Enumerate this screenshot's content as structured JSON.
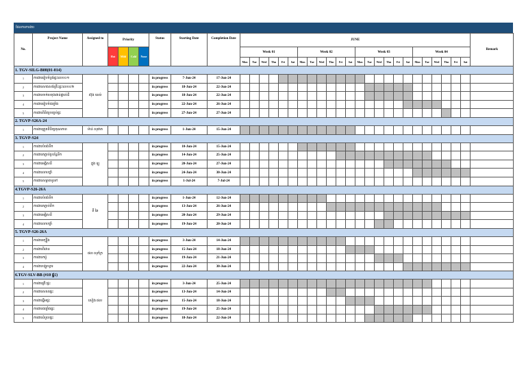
{
  "header": {
    "title": "ផែនការការងារ"
  },
  "table": {
    "columns": {
      "no": "No.",
      "project": "Project Name",
      "assigned": "Assigned to",
      "priority": "Priority",
      "status": "Status",
      "start": "Starting Date",
      "end": "Completion Date",
      "month": "JUNE",
      "remark": "Remark"
    },
    "priority_levels": [
      {
        "label": "Hot",
        "color": "#ff3b3b"
      },
      {
        "label": "Mild",
        "color": "#ffc000"
      },
      {
        "label": "Cold",
        "color": "#92d050"
      },
      {
        "label": "None",
        "color": "#0070c0"
      }
    ],
    "weeks": [
      "Week 01",
      "Week 02",
      "Week 03",
      "Week 04"
    ],
    "days": [
      "Mon",
      "Tue",
      "Wed",
      "Thu",
      "Fri",
      "Sat"
    ],
    "sections": [
      {
        "title": "1. TGV-SILG-B08(01-014)",
        "assigned": "ស៊ុង យល់",
        "rows": [
          {
            "no": 1,
            "name": "ការងាររៀបចំប្លង់ផ្ទះលេខ០១",
            "status": "in progress",
            "start": "7-Jun-24",
            "end": "17-Jun-24"
          },
          {
            "no": 2,
            "name": "ការងារសាងសង់គ្រឹះផ្ទះលេខ០២",
            "status": "in progress",
            "start": "18-Jun-24",
            "end": "22-Jun-24"
          },
          {
            "no": 3,
            "name": "ការងារចាក់បេតុងជាន់ផ្ទាល់ដី",
            "status": "in progress",
            "start": "18-Jun-24",
            "end": "22-Jun-24"
          },
          {
            "no": 4,
            "name": "ការងាររៀបចំជញ្ជាំង",
            "status": "in progress",
            "start": "22-Jun-24",
            "end": "26-Jun-24"
          },
          {
            "no": 5,
            "name": "ការងារពិនិត្យបញ្ចប់ផ្ទះ",
            "status": "in progress",
            "start": "27-Jun-24",
            "end": "27-Jun-24"
          }
        ]
      },
      {
        "title": "2. TGVP-S26A-24",
        "assigned": "ម៉ាន់ សុផាត",
        "rows": [
          {
            "no": 1,
            "name": "ការងារត្រួតពិនិត្យគុណភាព",
            "status": "in progress",
            "start": "1-Jun-24",
            "end": "15-Jun-24"
          }
        ]
      },
      {
        "title": "3. TGVP-S24",
        "assigned": "ក្នុង ឡូ",
        "rows": [
          {
            "no": 1,
            "name": "ការងារបំពង់ទឹក",
            "status": "in progress",
            "start": "10-Jun-24",
            "end": "15-Jun-24"
          },
          {
            "no": 2,
            "name": "ការងារតភ្ជាប់ប្រព័ន្ធទឹក",
            "status": "in progress",
            "start": "14-Jun-24",
            "end": "25-Jun-24"
          },
          {
            "no": 3,
            "name": "ការងារអគ្គិសនី",
            "status": "in progress",
            "start": "20-Jun-24",
            "end": "27-Jun-24"
          },
          {
            "no": 4,
            "name": "ការងារលាបថ្នាំ",
            "status": "in progress",
            "start": "24-Jun-24",
            "end": "30-Jun-24"
          },
          {
            "no": 5,
            "name": "ការងារសម្អាតទូទៅ",
            "status": "in progress",
            "start": "1-Jul-24",
            "end": "7-Jul-24"
          }
        ]
      },
      {
        "title": "4.TGVP-S26-26A",
        "assigned": "ពី ឆៃ",
        "rows": [
          {
            "no": 1,
            "name": "ការងារបំពង់ទឹក",
            "status": "in progress",
            "start": "1-Jun-24",
            "end": "12-Jun-24"
          },
          {
            "no": 2,
            "name": "ការងារតភ្ជាប់ទឹក",
            "status": "in progress",
            "start": "13-Jun-24",
            "end": "26-Jun-24"
          },
          {
            "no": 3,
            "name": "ការងារអគ្គិសនី",
            "status": "in progress",
            "start": "20-Jun-24",
            "end": "29-Jun-24"
          },
          {
            "no": 4,
            "name": "ការងារលាបថ្នាំ",
            "status": "in progress",
            "start": "19-Jun-24",
            "end": "20-Jun-24"
          }
        ]
      },
      {
        "title": "5. TGVP-S26-26A",
        "assigned": "ផល សុភ័ក្រ",
        "rows": [
          {
            "no": 1,
            "name": "ការងារក្បឿង",
            "status": "in progress",
            "start": "3-Jun-24",
            "end": "14-Jun-24"
          },
          {
            "no": 2,
            "name": "ការងារពិដាន",
            "status": "in progress",
            "start": "15-Jun-24",
            "end": "18-Jun-24"
          },
          {
            "no": 3,
            "name": "ការងារការ៉ូ",
            "status": "in progress",
            "start": "19-Jun-24",
            "end": "21-Jun-24"
          },
          {
            "no": 4,
            "name": "ការងារបង្អួចទ្វារ",
            "status": "in progress",
            "start": "22-Jun-24",
            "end": "30-Jun-24"
          }
        ]
      },
      {
        "title": "6.TGV-SLV-BB (#10 ផ្ទះ)",
        "assigned": "សៀង ផល",
        "rows": [
          {
            "no": 1,
            "name": "ការងារគ្រឹះផ្ទះ",
            "status": "in progress",
            "start": "3-Jun-24",
            "end": "25-Jun-24"
          },
          {
            "no": 2,
            "name": "ការងារសសរផ្ទះ",
            "status": "in progress",
            "start": "13-Jun-24",
            "end": "14-Jun-24"
          },
          {
            "no": 3,
            "name": "ការងារធ្នឹមផ្ទះ",
            "status": "in progress",
            "start": "15-Jun-24",
            "end": "18-Jun-24"
          },
          {
            "no": 4,
            "name": "ការងារជញ្ជាំងផ្ទះ",
            "status": "in progress",
            "start": "19-Jun-24",
            "end": "25-Jun-24"
          },
          {
            "no": 5,
            "name": "ការងារដំបូលផ្ទះ",
            "status": "in progress",
            "start": "18-Jun-24",
            "end": "22-Jun-24"
          }
        ]
      }
    ]
  }
}
